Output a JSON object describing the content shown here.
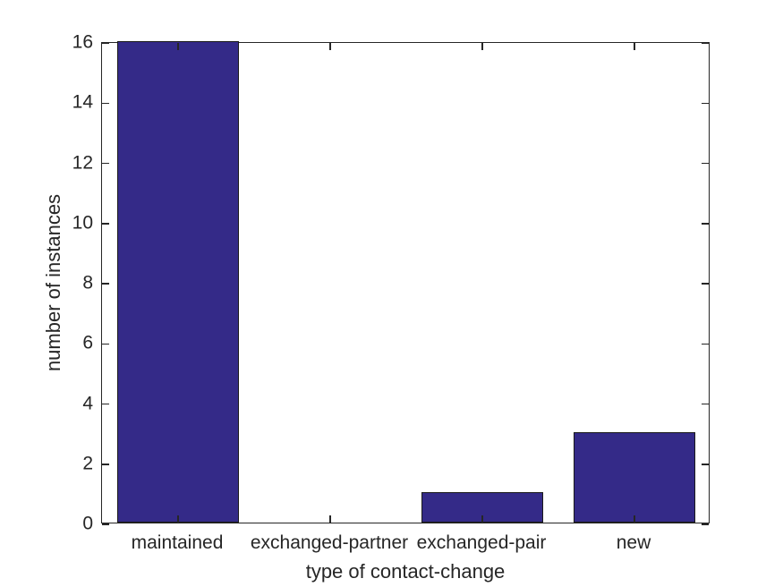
{
  "chart_data": {
    "type": "bar",
    "title": "",
    "categories": [
      "maintained",
      "exchanged-partner",
      "exchanged-pair",
      "new"
    ],
    "values": [
      16,
      0,
      1,
      3
    ],
    "xlabel": "type of contact-change",
    "ylabel": "number of instances",
    "ylim": [
      0,
      16
    ],
    "yticks": [
      0,
      2,
      4,
      6,
      8,
      10,
      12,
      14,
      16
    ],
    "grid": false,
    "legend": null,
    "box": true,
    "tick_direction": "in",
    "bar_width_fraction": 0.8,
    "colors": {
      "bar_face": "#342a88",
      "bar_edge": "#1a1a1a",
      "axis": "#262626",
      "text": "#262626",
      "background": "#ffffff"
    }
  }
}
